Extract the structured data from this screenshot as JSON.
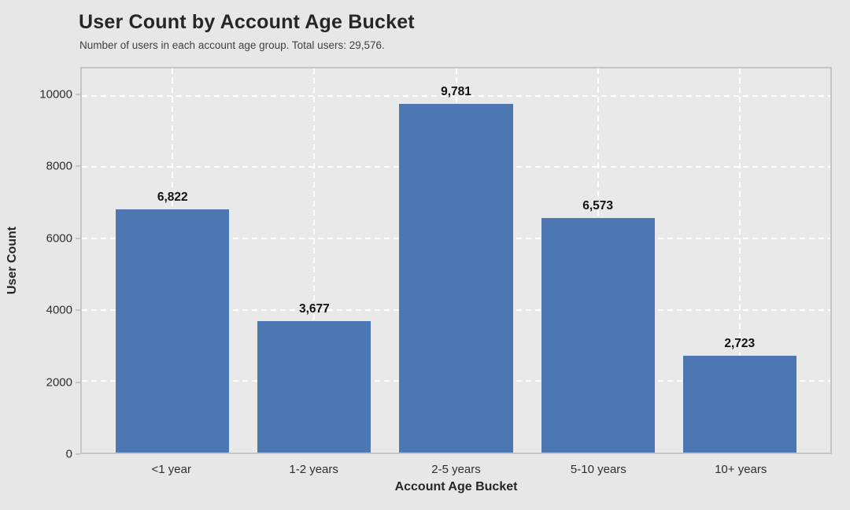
{
  "figure": {
    "title": "User Count by Account Age Bucket",
    "subtitle": "Number of users in each account age group. Total users: 29,576."
  },
  "chart_data": {
    "type": "bar",
    "title": "User Count by Account Age Bucket",
    "subtitle": "Number of users in each account age group. Total users: 29,576.",
    "categories": [
      "<1 year",
      "1-2 years",
      "2-5 years",
      "5-10 years",
      "10+ years"
    ],
    "values": [
      6822,
      3677,
      9781,
      6573,
      2723
    ],
    "value_labels": [
      "6,822",
      "3,677",
      "9,781",
      "6,573",
      "2,723"
    ],
    "total_users": "29,576",
    "xlabel": "Account Age Bucket",
    "ylabel": "User Count",
    "ylim": [
      0,
      10766
    ],
    "yticks": [
      0,
      2000,
      4000,
      6000,
      8000,
      10000
    ],
    "grid": true,
    "grid_style": "white-dashed",
    "legend": "none",
    "colors": {
      "bar": "#4d77b3",
      "plot_bg": "#e9e9e9",
      "figure_bg": "#e7e7e7",
      "grid": "#ffffff",
      "spine": "#c5c5c5",
      "tick_text": "#2e2e2e",
      "title_text": "#262626",
      "subtitle_text": "#404040",
      "value_text": "#111111"
    }
  }
}
